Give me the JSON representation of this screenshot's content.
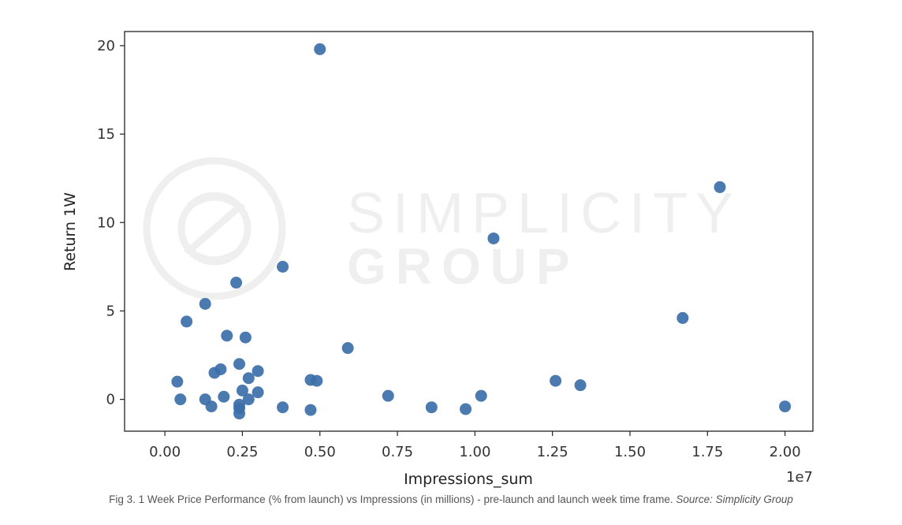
{
  "chart_data": {
    "type": "scatter",
    "xlabel": "Impressions_sum",
    "ylabel": "Return 1W",
    "x_scale_label": "1e7",
    "xlim": [
      -0.13,
      2.09
    ],
    "ylim": [
      -1.8,
      20.8
    ],
    "x_ticks": [
      0.0,
      0.25,
      0.5,
      0.75,
      1.0,
      1.25,
      1.5,
      1.75,
      2.0
    ],
    "x_tick_labels": [
      "0.00",
      "0.25",
      "0.50",
      "0.75",
      "1.00",
      "1.25",
      "1.50",
      "1.75",
      "2.00"
    ],
    "y_ticks": [
      0,
      5,
      10,
      15,
      20
    ],
    "y_tick_labels": [
      "0",
      "5",
      "10",
      "15",
      "20"
    ],
    "grid": false,
    "point_color": "#3b6fa8",
    "points": [
      {
        "x": 0.5,
        "y": 19.8
      },
      {
        "x": 1.79,
        "y": 12.0
      },
      {
        "x": 1.06,
        "y": 9.1
      },
      {
        "x": 0.38,
        "y": 7.5
      },
      {
        "x": 0.23,
        "y": 6.6
      },
      {
        "x": 0.13,
        "y": 5.4
      },
      {
        "x": 1.67,
        "y": 4.6
      },
      {
        "x": 0.07,
        "y": 4.4
      },
      {
        "x": 0.2,
        "y": 3.6
      },
      {
        "x": 0.26,
        "y": 3.5
      },
      {
        "x": 0.59,
        "y": 2.9
      },
      {
        "x": 0.24,
        "y": 2.0
      },
      {
        "x": 0.18,
        "y": 1.7
      },
      {
        "x": 0.3,
        "y": 1.6
      },
      {
        "x": 0.16,
        "y": 1.5
      },
      {
        "x": 0.27,
        "y": 1.2
      },
      {
        "x": 0.47,
        "y": 1.1
      },
      {
        "x": 0.49,
        "y": 1.05
      },
      {
        "x": 1.26,
        "y": 1.05
      },
      {
        "x": 0.04,
        "y": 1.0
      },
      {
        "x": 1.34,
        "y": 0.8
      },
      {
        "x": 0.25,
        "y": 0.5
      },
      {
        "x": 0.3,
        "y": 0.4
      },
      {
        "x": 0.72,
        "y": 0.2
      },
      {
        "x": 1.02,
        "y": 0.2
      },
      {
        "x": 0.19,
        "y": 0.15
      },
      {
        "x": 0.05,
        "y": 0.0
      },
      {
        "x": 0.13,
        "y": 0.0
      },
      {
        "x": 0.27,
        "y": 0.0
      },
      {
        "x": 0.24,
        "y": -0.3
      },
      {
        "x": 0.15,
        "y": -0.4
      },
      {
        "x": 0.38,
        "y": -0.45
      },
      {
        "x": 0.86,
        "y": -0.45
      },
      {
        "x": 2.0,
        "y": -0.4
      },
      {
        "x": 0.24,
        "y": -0.5
      },
      {
        "x": 0.47,
        "y": -0.6
      },
      {
        "x": 0.97,
        "y": -0.55
      },
      {
        "x": 0.24,
        "y": -0.8
      }
    ]
  },
  "watermark": {
    "line1": "SIMPLICITY",
    "line2": "GROUP"
  },
  "caption": {
    "text": "Fig 3. 1 Week Price Performance (% from launch) vs Impressions (in millions) - pre-launch and launch week time frame.",
    "source": "Source: Simplicity Group"
  }
}
